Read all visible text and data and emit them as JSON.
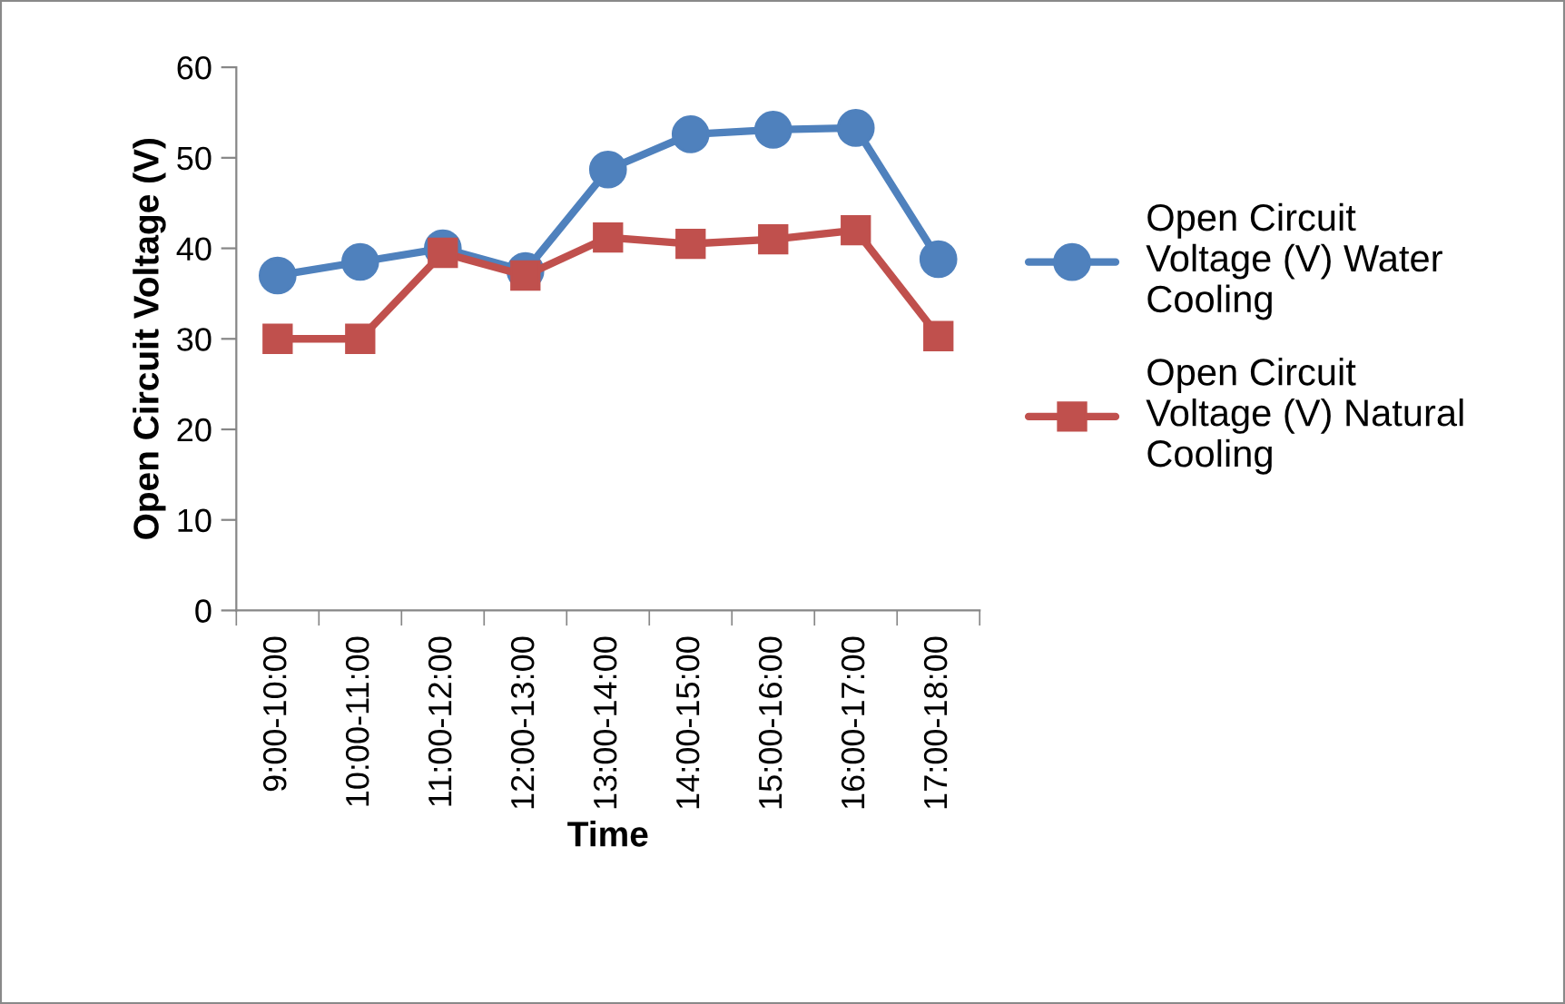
{
  "chart_data": {
    "type": "line",
    "xlabel": "Time",
    "ylabel": "Open Circuit Voltage (V)",
    "categories": [
      "9:00-10:00",
      "10:00-11:00",
      "11:00-12:00",
      "12:00-13:00",
      "13:00-14:00",
      "14:00-15:00",
      "15:00-16:00",
      "16:00-17:00",
      "17:00-18:00"
    ],
    "series": [
      {
        "name": "Open Circuit Voltage (V) Water Cooling",
        "color": "#4f81bd",
        "marker": "circle",
        "values": [
          37.0,
          38.5,
          40.0,
          37.5,
          48.7,
          52.6,
          53.1,
          53.3,
          38.8
        ]
      },
      {
        "name": "Open Circuit Voltage (V) Natural Cooling",
        "color": "#c0504d",
        "marker": "square",
        "values": [
          30.0,
          30.0,
          39.5,
          37.0,
          41.2,
          40.5,
          41.0,
          42.0,
          30.3
        ]
      }
    ],
    "ylim": [
      0,
      60
    ],
    "yticks": [
      0,
      10,
      20,
      30,
      40,
      50,
      60
    ],
    "grid": false,
    "legend": "right",
    "line_style": "solid"
  }
}
